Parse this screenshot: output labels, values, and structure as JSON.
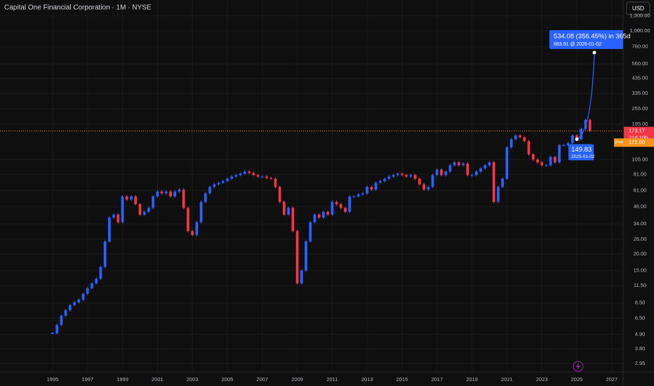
{
  "chart_data": {
    "type": "candlestick",
    "title": "Capital One Financial Corporation · 1M · NYSE",
    "currency": "USD",
    "log_scale": true,
    "up_color": "#2962ff",
    "down_color": "#f23645",
    "x": [
      "1995-01",
      "1995-04",
      "1995-07",
      "1995-10",
      "1996-01",
      "1996-04",
      "1996-07",
      "1996-10",
      "1997-01",
      "1997-04",
      "1997-07",
      "1997-10",
      "1998-01",
      "1998-04",
      "1998-07",
      "1998-10",
      "1999-01",
      "1999-04",
      "1999-07",
      "1999-10",
      "2000-01",
      "2000-04",
      "2000-07",
      "2000-10",
      "2001-01",
      "2001-04",
      "2001-07",
      "2001-10",
      "2002-01",
      "2002-04",
      "2002-07",
      "2002-10",
      "2003-01",
      "2003-04",
      "2003-07",
      "2003-10",
      "2004-01",
      "2004-04",
      "2004-07",
      "2004-10",
      "2005-01",
      "2005-04",
      "2005-07",
      "2005-10",
      "2006-01",
      "2006-04",
      "2006-07",
      "2006-10",
      "2007-01",
      "2007-04",
      "2007-07",
      "2007-10",
      "2008-01",
      "2008-04",
      "2008-07",
      "2008-10",
      "2009-01",
      "2009-04",
      "2009-07",
      "2009-10",
      "2010-01",
      "2010-04",
      "2010-07",
      "2010-10",
      "2011-01",
      "2011-04",
      "2011-07",
      "2011-10",
      "2012-01",
      "2012-04",
      "2012-07",
      "2012-10",
      "2013-01",
      "2013-04",
      "2013-07",
      "2013-10",
      "2014-01",
      "2014-04",
      "2014-07",
      "2014-10",
      "2015-01",
      "2015-04",
      "2015-07",
      "2015-10",
      "2016-01",
      "2016-04",
      "2016-07",
      "2016-10",
      "2017-01",
      "2017-04",
      "2017-07",
      "2017-10",
      "2018-01",
      "2018-04",
      "2018-07",
      "2018-10",
      "2019-01",
      "2019-04",
      "2019-07",
      "2019-10",
      "2020-01",
      "2020-04",
      "2020-07",
      "2020-10",
      "2021-01",
      "2021-04",
      "2021-07",
      "2021-10",
      "2022-01",
      "2022-04",
      "2022-07",
      "2022-10",
      "2023-01",
      "2023-04",
      "2023-07",
      "2023-10",
      "2024-01",
      "2024-04",
      "2024-07",
      "2024-10",
      "2025-01",
      "2025-04",
      "2025-07",
      "2025-10"
    ],
    "values": [
      5,
      5.8,
      6.8,
      7.5,
      8.2,
      8.6,
      9,
      10,
      11,
      12,
      13,
      16,
      25,
      38,
      40,
      35,
      55,
      52,
      55,
      48,
      40,
      42,
      45,
      55,
      60,
      58,
      60,
      55,
      60,
      62,
      45,
      30,
      28,
      35,
      50,
      58,
      65,
      68,
      70,
      72,
      75,
      78,
      80,
      82,
      85,
      83,
      80,
      78,
      78,
      76,
      75,
      65,
      50,
      40,
      45,
      30,
      12,
      15,
      25,
      35,
      40,
      38,
      42,
      40,
      50,
      48,
      45,
      42,
      55,
      55,
      57,
      58,
      65,
      62,
      70,
      72,
      75,
      78,
      80,
      82,
      80,
      78,
      80,
      75,
      68,
      62,
      65,
      80,
      88,
      80,
      85,
      95,
      100,
      95,
      98,
      80,
      80,
      85,
      90,
      95,
      100,
      50,
      65,
      75,
      130,
      150,
      160,
      155,
      145,
      115,
      105,
      100,
      95,
      95,
      110,
      100,
      135,
      135,
      140,
      160,
      150,
      180,
      210,
      173.17
    ],
    "xlim": [
      1991.99,
      2027.65
    ],
    "ylim": [
      2.54,
      1718
    ],
    "xticks": [
      1995,
      1997,
      1999,
      2001,
      2003,
      2005,
      2007,
      2009,
      2011,
      2013,
      2015,
      2017,
      2019,
      2021,
      2023,
      2025,
      2027
    ],
    "yticks": [
      {
        "value": 2.95,
        "label": "2.95"
      },
      {
        "value": 3.8,
        "label": "3.80"
      },
      {
        "value": 4.9,
        "label": "4.90"
      },
      {
        "value": 6.5,
        "label": "6.50"
      },
      {
        "value": 8.5,
        "label": "8.50"
      },
      {
        "value": 11.5,
        "label": "11.50"
      },
      {
        "value": 15,
        "label": "15.00"
      },
      {
        "value": 20,
        "label": "20.00"
      },
      {
        "value": 26,
        "label": "26.00"
      },
      {
        "value": 34,
        "label": "34.00"
      },
      {
        "value": 46,
        "label": "46.00"
      },
      {
        "value": 61,
        "label": "61.00"
      },
      {
        "value": 81,
        "label": "81.00"
      },
      {
        "value": 105,
        "label": "105.00"
      },
      {
        "value": 195,
        "label": "195.00"
      },
      {
        "value": 255,
        "label": "255.00"
      },
      {
        "value": 335,
        "label": "335.00"
      },
      {
        "value": 435,
        "label": "435.00"
      },
      {
        "value": 560,
        "label": "560.00"
      },
      {
        "value": 760,
        "label": "760.00"
      },
      {
        "value": 1000,
        "label": "1,000.00"
      },
      {
        "value": 1300,
        "label": "1,300.00"
      }
    ],
    "last_price": {
      "value": 173.17,
      "label": "173.17",
      "countdown": "21d 10h",
      "color": "#f23645"
    },
    "premarket": {
      "tag": "Pre",
      "value": 172,
      "label": "172.00",
      "color": "#f7931a"
    },
    "projection": {
      "from_date": "2025-01-02",
      "from_value": 149.83,
      "from_label": "149.83",
      "to_date": "2026-01-02",
      "to_value": 683.91,
      "label": "534.08 (356.45%) in 365d",
      "sublabel": "683.91 @ 2026-01-02",
      "color": "#2962ff"
    }
  }
}
